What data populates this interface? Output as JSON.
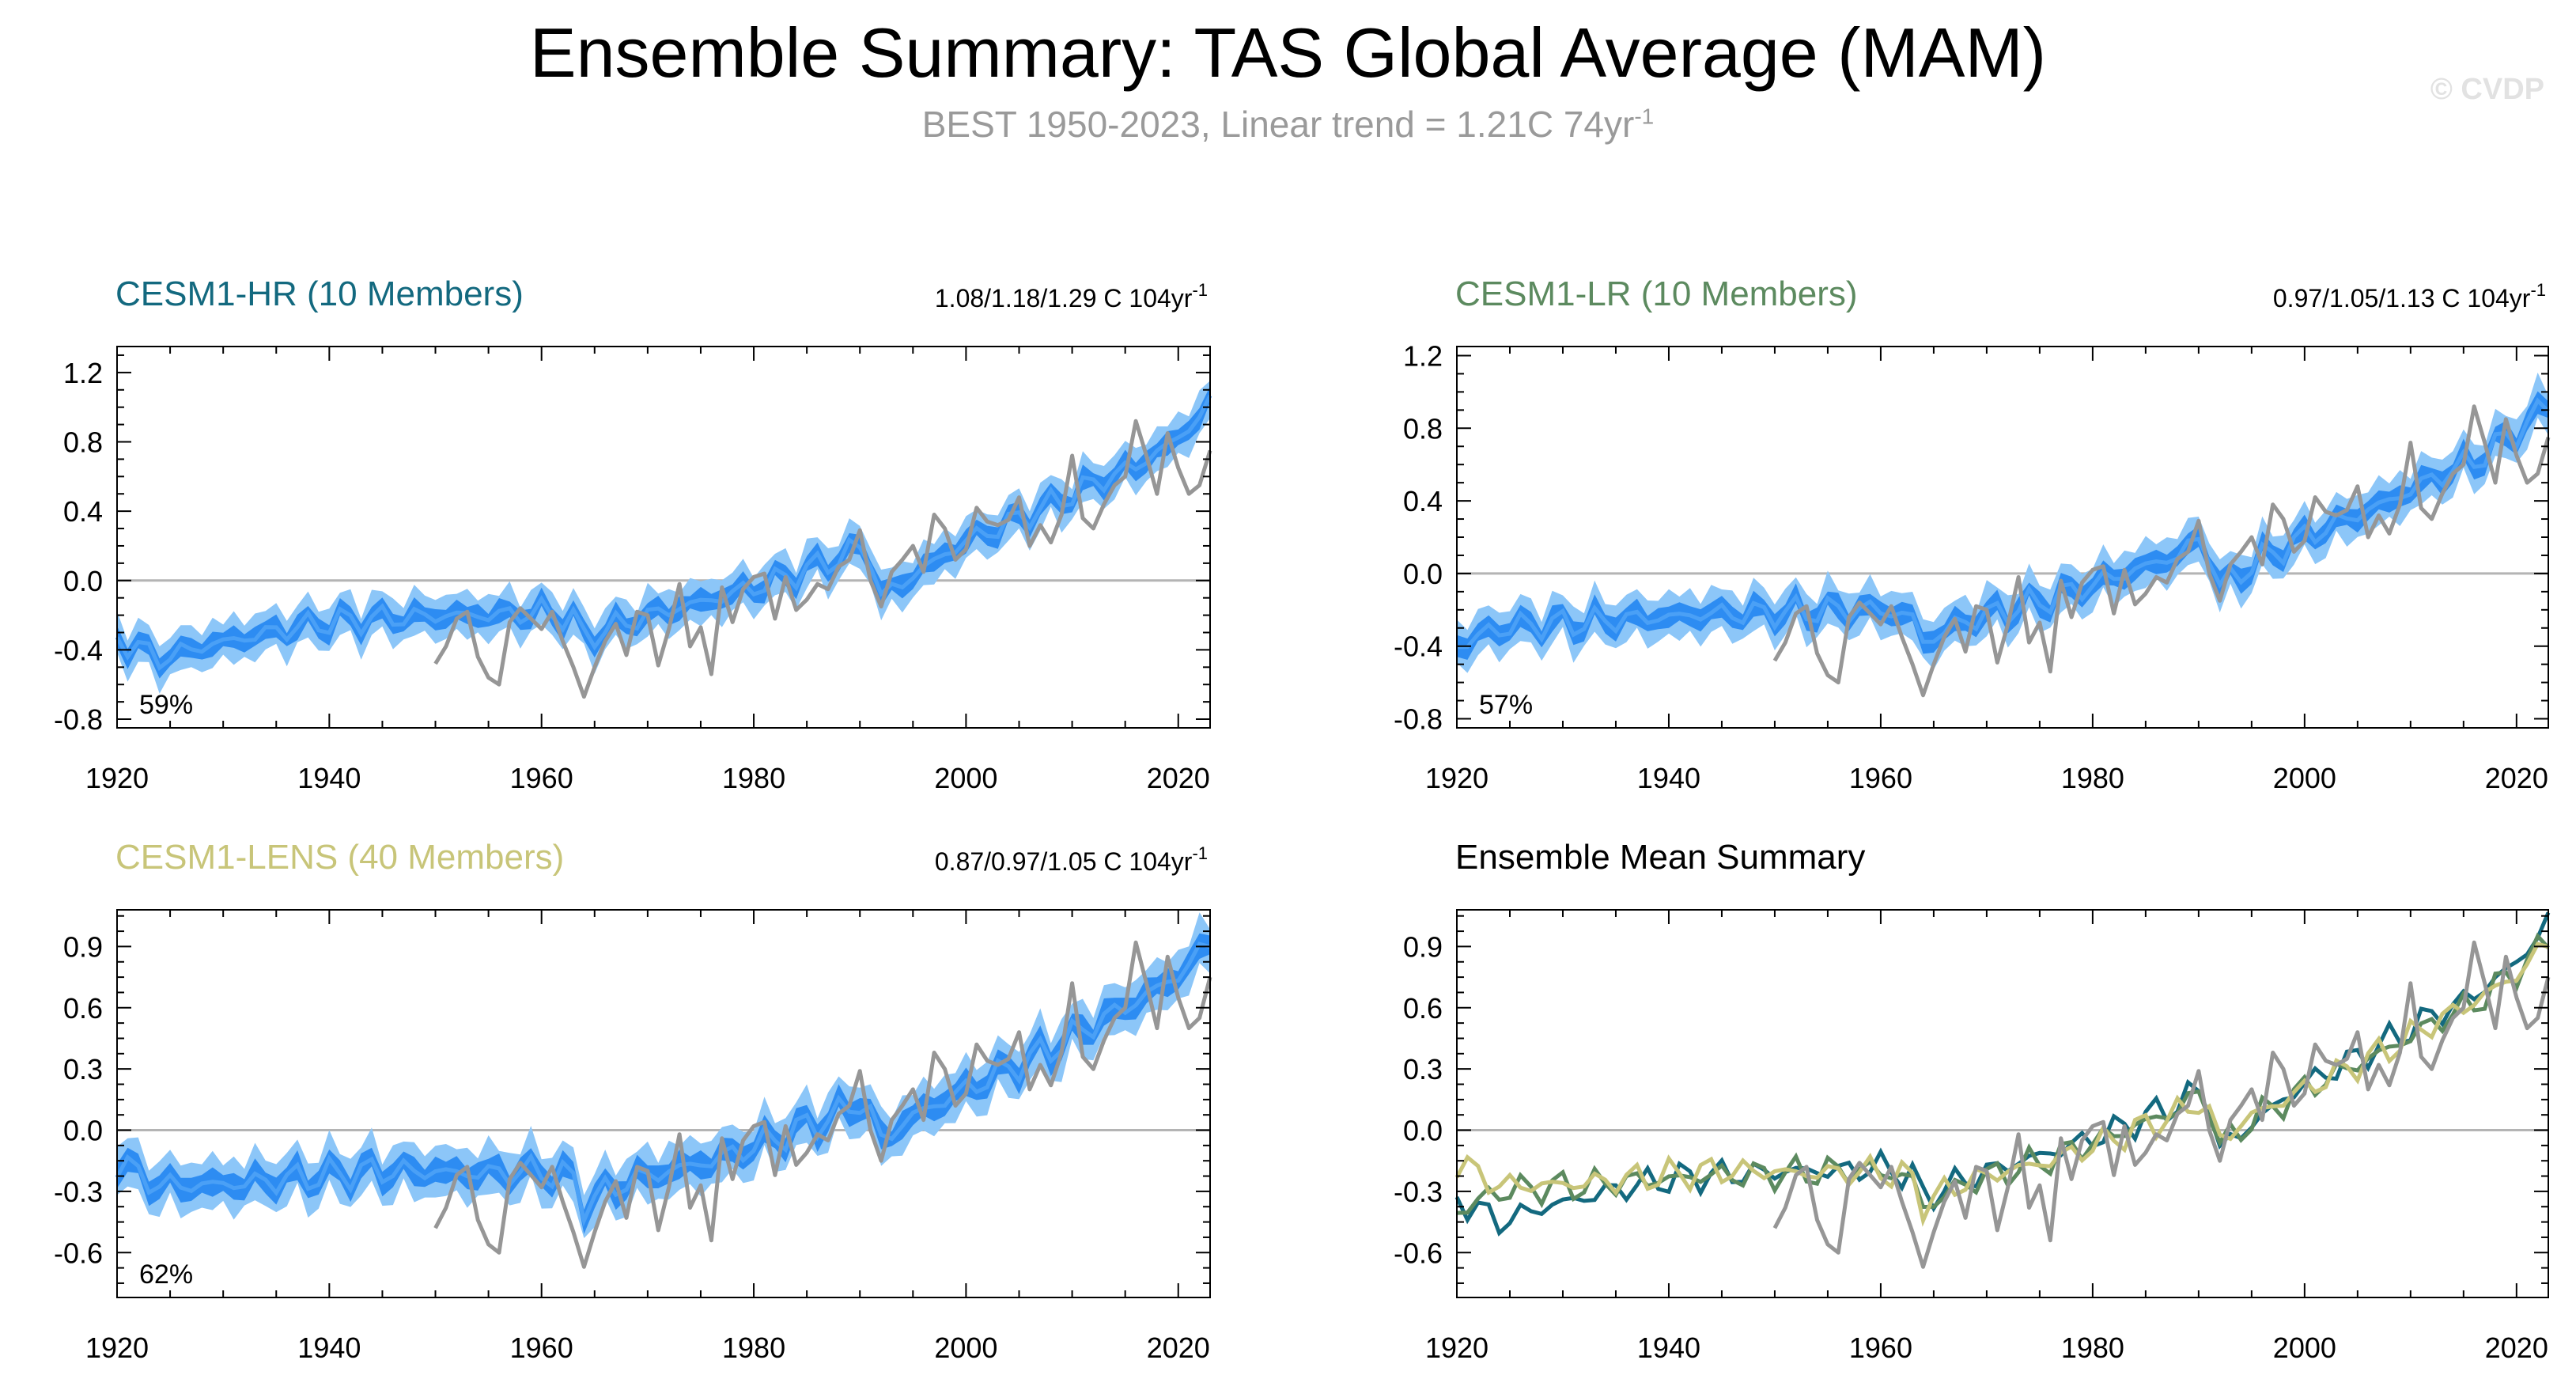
{
  "header": {
    "title": "Ensemble Summary: TAS Global Average (MAM)",
    "subtitle_main": "BEST 1950-2023, Linear trend = 1.21C 74yr",
    "subtitle_sup": "-1",
    "watermark": "© CVDP"
  },
  "colors": {
    "obs": "#969696",
    "band_outer": "#8cc6f8",
    "band_inner": "#2d8cf2",
    "ens_line": "#4aa0f6",
    "hr": "#13697f",
    "lr": "#5c8a5f",
    "lens": "#c8c579",
    "zero": "#b4b4b4"
  },
  "chart_data": [
    {
      "type": "area",
      "panel": "cesm1-hr",
      "title": "CESM1-HR (10 Members)",
      "title_color": "#13697f",
      "trend": "1.08/1.18/1.29 C 104yr",
      "trend_sup": "-1",
      "pct_label": "59%",
      "xlim": [
        1920,
        2023
      ],
      "ylim": [
        -0.85,
        1.35
      ],
      "yticks": [
        "1.2",
        "0.8",
        "0.4",
        "0.0",
        "-0.4",
        "-0.8"
      ],
      "ytick_values": [
        1.2,
        0.8,
        0.4,
        0.0,
        -0.4,
        -0.8
      ],
      "xticks": [
        "1920",
        "1940",
        "1960",
        "1980",
        "2000",
        "2020"
      ],
      "series": [
        {
          "role": "ensemble_mean",
          "x": [
            1920,
            1924,
            1928,
            1932,
            1936,
            1940,
            1944,
            1948,
            1952,
            1956,
            1960,
            1963,
            1964,
            1968,
            1972,
            1976,
            1980,
            1984,
            1988,
            1990,
            1991,
            1992,
            1995,
            2000,
            2004,
            2008,
            2012,
            2016,
            2020,
            2023
          ],
          "values": [
            -0.33,
            -0.45,
            -0.38,
            -0.33,
            -0.28,
            -0.24,
            -0.22,
            -0.21,
            -0.2,
            -0.2,
            -0.18,
            -0.22,
            -0.33,
            -0.24,
            -0.17,
            -0.11,
            -0.04,
            0.04,
            0.13,
            0.19,
            0.14,
            -0.1,
            0.03,
            0.23,
            0.33,
            0.44,
            0.56,
            0.66,
            0.82,
            1.02
          ]
        }
      ]
    },
    {
      "type": "area",
      "panel": "cesm1-lr",
      "title": "CESM1-LR (10 Members)",
      "title_color": "#5c8a5f",
      "trend": "0.97/1.05/1.13 C 104yr",
      "trend_sup": "-1",
      "pct_label": "57%",
      "xlim": [
        1920,
        2023
      ],
      "ylim": [
        -0.85,
        1.25
      ],
      "yticks": [
        "1.2",
        "0.8",
        "0.4",
        "0.0",
        "-0.4",
        "-0.8"
      ],
      "ytick_values": [
        1.2,
        0.8,
        0.4,
        0.0,
        -0.4,
        -0.8
      ],
      "xticks": [
        "1920",
        "1940",
        "1960",
        "1980",
        "2000",
        "2020"
      ],
      "series": [
        {
          "role": "ensemble_mean",
          "x": [
            1920,
            1924,
            1928,
            1932,
            1936,
            1940,
            1944,
            1948,
            1952,
            1956,
            1960,
            1963,
            1964,
            1968,
            1972,
            1976,
            1980,
            1984,
            1988,
            1990,
            1991,
            1992,
            1995,
            2000,
            2004,
            2008,
            2012,
            2016,
            2020,
            2023
          ],
          "values": [
            -0.4,
            -0.3,
            -0.28,
            -0.27,
            -0.25,
            -0.24,
            -0.22,
            -0.22,
            -0.21,
            -0.2,
            -0.2,
            -0.24,
            -0.38,
            -0.26,
            -0.2,
            -0.14,
            -0.06,
            0.02,
            0.1,
            0.18,
            0.12,
            -0.08,
            0.05,
            0.2,
            0.3,
            0.4,
            0.52,
            0.62,
            0.78,
            0.93
          ]
        }
      ]
    },
    {
      "type": "area",
      "panel": "cesm1-lens",
      "title": "CESM1-LENS (40 Members)",
      "title_color": "#c8c579",
      "trend": "0.87/0.97/1.05 C 104yr",
      "trend_sup": "-1",
      "pct_label": "62%",
      "xlim": [
        1920,
        2023
      ],
      "ylim": [
        -0.82,
        1.08
      ],
      "yticks": [
        "0.9",
        "0.6",
        "0.3",
        "0.0",
        "-0.3",
        "-0.6"
      ],
      "ytick_values": [
        0.9,
        0.6,
        0.3,
        0.0,
        -0.3,
        -0.6
      ],
      "xticks": [
        "1920",
        "1940",
        "1960",
        "1980",
        "2000",
        "2020"
      ],
      "series": [
        {
          "role": "ensemble_mean",
          "x": [
            1920,
            1924,
            1928,
            1932,
            1936,
            1940,
            1944,
            1948,
            1952,
            1956,
            1960,
            1963,
            1964,
            1968,
            1972,
            1976,
            1980,
            1984,
            1988,
            1990,
            1991,
            1992,
            1995,
            2000,
            2004,
            2008,
            2012,
            2016,
            2020,
            2023
          ],
          "values": [
            -0.16,
            -0.27,
            -0.27,
            -0.26,
            -0.24,
            -0.22,
            -0.2,
            -0.2,
            -0.21,
            -0.21,
            -0.2,
            -0.24,
            -0.36,
            -0.25,
            -0.2,
            -0.15,
            -0.08,
            0.0,
            0.08,
            0.14,
            0.08,
            -0.05,
            0.07,
            0.2,
            0.3,
            0.4,
            0.52,
            0.63,
            0.76,
            0.92
          ]
        }
      ]
    },
    {
      "type": "line",
      "panel": "ensemble-mean-summary",
      "title": "Ensemble Mean Summary",
      "title_color": "#000000",
      "xlim": [
        1920,
        2023
      ],
      "ylim": [
        -0.82,
        1.08
      ],
      "yticks": [
        "0.9",
        "0.6",
        "0.3",
        "0.0",
        "-0.3",
        "-0.6"
      ],
      "ytick_values": [
        0.9,
        0.6,
        0.3,
        0.0,
        -0.3,
        -0.6
      ],
      "xticks": [
        "1920",
        "1940",
        "1960",
        "1980",
        "2000",
        "2020"
      ],
      "series": [
        {
          "role": "hr",
          "x": [
            1920,
            1924,
            1928,
            1932,
            1936,
            1940,
            1944,
            1948,
            1952,
            1956,
            1960,
            1963,
            1964,
            1968,
            1972,
            1976,
            1980,
            1984,
            1988,
            1990,
            1991,
            1992,
            1995,
            2000,
            2004,
            2008,
            2012,
            2016,
            2020,
            2023
          ],
          "values": [
            -0.33,
            -0.45,
            -0.38,
            -0.33,
            -0.28,
            -0.24,
            -0.22,
            -0.21,
            -0.2,
            -0.2,
            -0.18,
            -0.22,
            -0.33,
            -0.24,
            -0.17,
            -0.11,
            -0.04,
            0.04,
            0.13,
            0.19,
            0.14,
            -0.1,
            0.03,
            0.23,
            0.33,
            0.44,
            0.56,
            0.66,
            0.82,
            1.02
          ]
        },
        {
          "role": "lr",
          "x": [
            1920,
            1924,
            1928,
            1932,
            1936,
            1940,
            1944,
            1948,
            1952,
            1956,
            1960,
            1963,
            1964,
            1968,
            1972,
            1976,
            1980,
            1984,
            1988,
            1990,
            1991,
            1992,
            1995,
            2000,
            2004,
            2008,
            2012,
            2016,
            2020,
            2023
          ],
          "values": [
            -0.4,
            -0.3,
            -0.28,
            -0.27,
            -0.25,
            -0.24,
            -0.22,
            -0.22,
            -0.21,
            -0.2,
            -0.2,
            -0.24,
            -0.38,
            -0.26,
            -0.2,
            -0.14,
            -0.06,
            0.02,
            0.1,
            0.18,
            0.12,
            -0.08,
            0.05,
            0.2,
            0.3,
            0.4,
            0.52,
            0.62,
            0.78,
            0.93
          ]
        },
        {
          "role": "lens",
          "x": [
            1920,
            1924,
            1928,
            1932,
            1936,
            1940,
            1944,
            1948,
            1952,
            1956,
            1960,
            1963,
            1964,
            1968,
            1972,
            1976,
            1980,
            1984,
            1988,
            1990,
            1991,
            1992,
            1995,
            2000,
            2004,
            2008,
            2012,
            2016,
            2020,
            2023
          ],
          "values": [
            -0.16,
            -0.27,
            -0.27,
            -0.26,
            -0.24,
            -0.22,
            -0.2,
            -0.2,
            -0.21,
            -0.21,
            -0.2,
            -0.24,
            -0.36,
            -0.25,
            -0.2,
            -0.15,
            -0.08,
            0.0,
            0.08,
            0.14,
            0.08,
            -0.05,
            0.07,
            0.2,
            0.3,
            0.4,
            0.52,
            0.63,
            0.76,
            0.92
          ]
        }
      ]
    }
  ],
  "observations": {
    "x": [
      1950,
      1951,
      1952,
      1953,
      1954,
      1955,
      1956,
      1957,
      1958,
      1959,
      1960,
      1961,
      1962,
      1963,
      1964,
      1965,
      1966,
      1967,
      1968,
      1969,
      1970,
      1971,
      1972,
      1973,
      1974,
      1975,
      1976,
      1977,
      1978,
      1979,
      1980,
      1981,
      1982,
      1983,
      1984,
      1985,
      1986,
      1987,
      1988,
      1989,
      1990,
      1991,
      1992,
      1993,
      1994,
      1995,
      1996,
      1997,
      1998,
      1999,
      2000,
      2001,
      2002,
      2003,
      2004,
      2005,
      2006,
      2007,
      2008,
      2009,
      2010,
      2011,
      2012,
      2013,
      2014,
      2015,
      2016,
      2017,
      2018,
      2019,
      2020,
      2021,
      2022,
      2023
    ],
    "values": [
      -0.48,
      -0.38,
      -0.22,
      -0.18,
      -0.44,
      -0.56,
      -0.6,
      -0.24,
      -0.16,
      -0.22,
      -0.28,
      -0.18,
      -0.35,
      -0.5,
      -0.67,
      -0.5,
      -0.35,
      -0.25,
      -0.43,
      -0.18,
      -0.2,
      -0.49,
      -0.28,
      -0.02,
      -0.38,
      -0.27,
      -0.54,
      -0.04,
      -0.24,
      -0.05,
      0.02,
      0.04,
      -0.22,
      0.02,
      -0.17,
      -0.11,
      -0.02,
      -0.05,
      0.08,
      0.12,
      0.29,
      0.0,
      -0.15,
      0.05,
      0.12,
      0.2,
      0.05,
      0.38,
      0.3,
      0.12,
      0.18,
      0.42,
      0.34,
      0.32,
      0.35,
      0.48,
      0.2,
      0.32,
      0.22,
      0.38,
      0.72,
      0.36,
      0.3,
      0.44,
      0.55,
      0.6,
      0.92,
      0.72,
      0.5,
      0.85,
      0.65,
      0.5,
      0.55,
      0.75
    ]
  },
  "spread": {
    "outer_half_width": [
      0.12,
      0.12,
      0.12,
      0.1
    ],
    "inner_half_width": [
      0.055,
      0.055,
      0.055,
      0.045
    ]
  }
}
